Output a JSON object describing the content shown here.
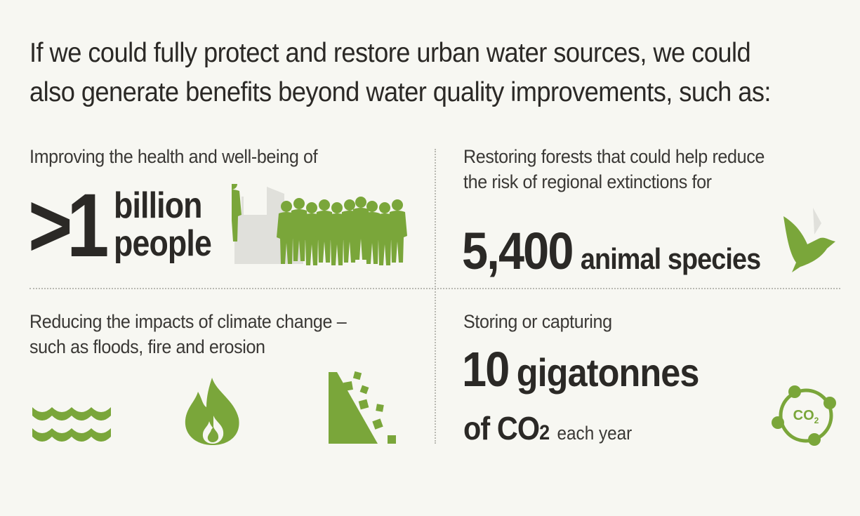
{
  "headline": {
    "line1": "If we could fully protect and restore urban water sources, we could",
    "line2": "also generate benefits beyond water quality improvements, such as:"
  },
  "health": {
    "lead": "Improving the health and well-being of",
    "number": ">1",
    "unit_line1": "billion",
    "unit_line2": "people",
    "icon": "people-crowd-icon"
  },
  "forests": {
    "lead_line1": "Restoring forests that could help reduce",
    "lead_line2": "the risk of regional extinctions for",
    "number": "5,400",
    "unit": "animal species",
    "icon": "bird-icon"
  },
  "climate": {
    "lead_line1": "Reducing the impacts of climate change –",
    "lead_line2": "such as floods, fire and erosion",
    "icons": [
      "flood-waves-icon",
      "fire-icon",
      "erosion-landslide-icon"
    ]
  },
  "carbon": {
    "lead": "Storing or capturing",
    "number": "10",
    "unit": "gigatonnes",
    "co2_prefix": "of CO",
    "co2_sub": "2",
    "tail": "each year",
    "icon": "co2-cycle-icon",
    "icon_label": "CO",
    "icon_label_sub": "2"
  },
  "colors": {
    "green": "#7aa63a",
    "text": "#2b2926",
    "gray": "#e0e0db",
    "background": "#f7f7f2"
  }
}
